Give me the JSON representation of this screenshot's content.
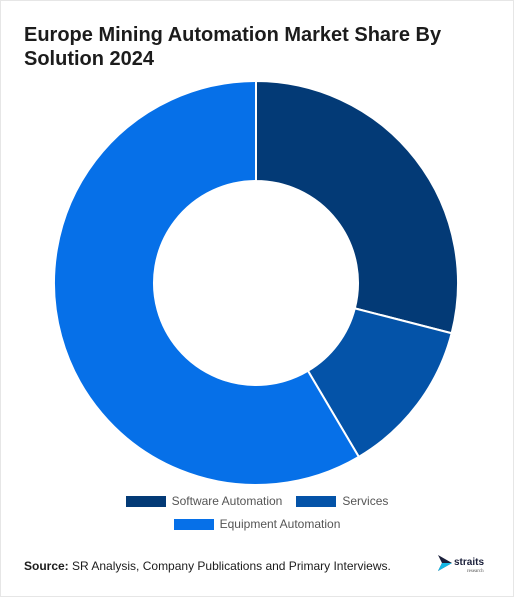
{
  "title": "Europe Mining Automation Market Share By Solution 2024",
  "source": {
    "label": "Source:",
    "text": "SR Analysis, Company Publications and Primary Interviews."
  },
  "logo": {
    "name": "straits",
    "tagline": "research"
  },
  "chart_data": {
    "type": "pie",
    "variant": "donut",
    "title": "Europe Mining Automation Market Share By Solution 2024",
    "categories": [
      "Software Automation",
      "Services",
      "Equipment Automation"
    ],
    "values": [
      29,
      12.5,
      58.5
    ],
    "colors": [
      "#033a76",
      "#0453a8",
      "#0670e8"
    ],
    "legend_position": "bottom"
  }
}
